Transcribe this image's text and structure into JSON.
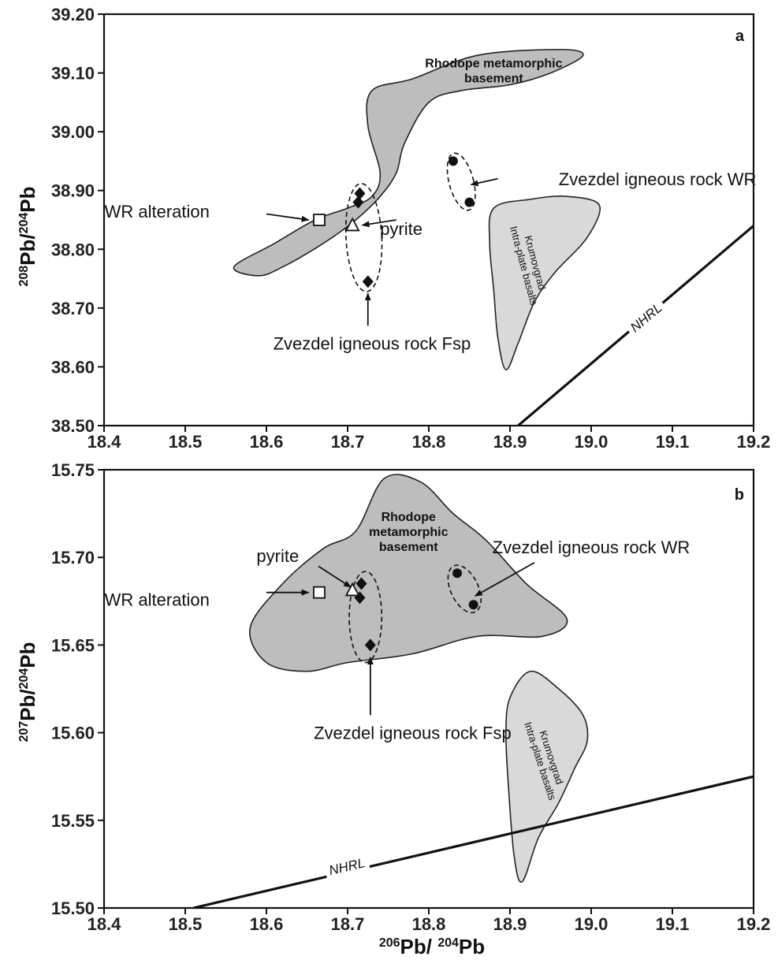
{
  "chart_data": [
    {
      "type": "scatter",
      "panel": "a",
      "xlim": [
        18.4,
        19.2
      ],
      "ylim": [
        38.5,
        39.2
      ],
      "x_ticks": [
        "18.4",
        "18.5",
        "18.6",
        "18.7",
        "18.8",
        "18.9",
        "19.0",
        "19.1",
        "19.2"
      ],
      "y_ticks": [
        "38.50",
        "38.60",
        "38.70",
        "38.80",
        "38.90",
        "39.00",
        "39.10",
        "39.20"
      ],
      "ylabel": {
        "sup1": "208",
        "base1": "Pb/",
        "sup2": "204",
        "base2": "Pb"
      },
      "regions": [
        {
          "name": "Rhodope metamorphic basement",
          "label_lines": [
            "Rhodope metamorphic",
            "basement"
          ],
          "fill": "#bdbdbd",
          "outline": [
            [
              18.56,
              38.77
            ],
            [
              18.61,
              38.81
            ],
            [
              18.66,
              38.85
            ],
            [
              18.7,
              38.87
            ],
            [
              18.73,
              38.89
            ],
            [
              18.74,
              38.93
            ],
            [
              18.725,
              39.01
            ],
            [
              18.73,
              39.07
            ],
            [
              18.78,
              39.09
            ],
            [
              18.86,
              39.13
            ],
            [
              18.96,
              39.14
            ],
            [
              18.99,
              39.13
            ],
            [
              18.95,
              39.1
            ],
            [
              18.9,
              39.08
            ],
            [
              18.84,
              39.07
            ],
            [
              18.8,
              39.05
            ],
            [
              18.77,
              38.98
            ],
            [
              18.76,
              38.93
            ],
            [
              18.74,
              38.89
            ],
            [
              18.71,
              38.85
            ],
            [
              18.67,
              38.81
            ],
            [
              18.62,
              38.77
            ],
            [
              18.59,
              38.755
            ],
            [
              18.56,
              38.77
            ]
          ]
        },
        {
          "name": "Krumovgrad Intra-plate basalts",
          "label_lines": [
            "Krumovgrad",
            "Intra-plate basalts"
          ],
          "fill": "#d9d9d9",
          "outline": [
            [
              18.88,
              38.87
            ],
            [
              18.925,
              38.885
            ],
            [
              18.97,
              38.89
            ],
            [
              19.01,
              38.875
            ],
            [
              18.995,
              38.82
            ],
            [
              18.955,
              38.76
            ],
            [
              18.93,
              38.71
            ],
            [
              18.91,
              38.64
            ],
            [
              18.895,
              38.595
            ],
            [
              18.885,
              38.65
            ],
            [
              18.88,
              38.73
            ],
            [
              18.875,
              38.81
            ],
            [
              18.88,
              38.87
            ]
          ]
        }
      ],
      "series": [
        {
          "name": "Zvezdel igneous rock WR",
          "marker": "circle",
          "x": [
            18.83,
            18.85
          ],
          "y": [
            38.95,
            38.88
          ]
        },
        {
          "name": "Zvezdel igneous rock Fsp",
          "marker": "diamond",
          "x": [
            18.715,
            18.713,
            18.725
          ],
          "y": [
            38.895,
            38.88,
            38.745
          ]
        },
        {
          "name": "WR alteration",
          "marker": "square",
          "x": [
            18.665
          ],
          "y": [
            38.85
          ]
        },
        {
          "name": "pyrite",
          "marker": "triangle",
          "x": [
            18.706
          ],
          "y": [
            38.84
          ]
        }
      ],
      "ellipses": [
        {
          "group": "Zvezdel igneous rock WR",
          "cx": 18.84,
          "cy": 38.915,
          "rx": 0.015,
          "ry": 0.05,
          "rot_deg": -15
        },
        {
          "group": "Zvezdel igneous rock Fsp",
          "cx": 18.72,
          "cy": 38.82,
          "rx": 0.022,
          "ry": 0.092,
          "rot_deg": -3
        }
      ],
      "lines": [
        {
          "name": "NHRL",
          "x": [
            18.91,
            19.2
          ],
          "y": [
            38.5,
            38.84
          ]
        }
      ],
      "annotations": [
        {
          "text": "WR alteration",
          "tx": 18.53,
          "ty": 38.865,
          "tail": [
            18.6,
            38.86
          ],
          "head": [
            18.652,
            38.85
          ]
        },
        {
          "text": "pyrite",
          "tx": 18.74,
          "ty": 38.835,
          "tail": [
            18.76,
            38.85
          ],
          "head": [
            18.718,
            38.841
          ]
        },
        {
          "text": "Zvezdel igneous rock Fsp",
          "tx": 18.73,
          "ty": 38.64,
          "tail": [
            18.725,
            38.67
          ],
          "head": [
            18.725,
            38.725
          ]
        },
        {
          "text": "Zvezdel igneous rock WR",
          "tx": 18.96,
          "ty": 38.92,
          "tail": [
            18.885,
            38.92
          ],
          "head": [
            18.852,
            38.91
          ]
        }
      ],
      "nhrl_label": {
        "text": "NHRL",
        "x": 19.07,
        "y": 38.68
      }
    },
    {
      "type": "scatter",
      "panel": "b",
      "xlim": [
        18.4,
        19.2
      ],
      "ylim": [
        15.5,
        15.75
      ],
      "x_ticks": [
        "18.4",
        "18.5",
        "18.6",
        "18.7",
        "18.8",
        "18.9",
        "19.0",
        "19.1",
        "19.2"
      ],
      "y_ticks": [
        "15.50",
        "15.55",
        "15.60",
        "15.65",
        "15.70",
        "15.75"
      ],
      "xlabel": {
        "sup1": "206",
        "base1": "Pb/ ",
        "sup2": "204",
        "base2": "Pb"
      },
      "ylabel": {
        "sup1": "207",
        "base1": "Pb/",
        "sup2": "204",
        "base2": "Pb"
      },
      "regions": [
        {
          "name": "Rhodope metamorphic basement",
          "label_lines": [
            "Rhodope",
            "metamorphic",
            "basement"
          ],
          "fill": "#bdbdbd",
          "outline": [
            [
              18.58,
              15.66
            ],
            [
              18.62,
              15.685
            ],
            [
              18.67,
              15.705
            ],
            [
              18.71,
              15.715
            ],
            [
              18.745,
              15.745
            ],
            [
              18.79,
              15.743
            ],
            [
              18.83,
              15.725
            ],
            [
              18.87,
              15.71
            ],
            [
              18.92,
              15.685
            ],
            [
              18.97,
              15.665
            ],
            [
              18.94,
              15.655
            ],
            [
              18.86,
              15.655
            ],
            [
              18.78,
              15.645
            ],
            [
              18.7,
              15.64
            ],
            [
              18.65,
              15.635
            ],
            [
              18.6,
              15.64
            ],
            [
              18.58,
              15.66
            ]
          ]
        },
        {
          "name": "Krumovgrad Intra-plate basalts",
          "label_lines": [
            "Krumovgrad",
            "Intra-plate basalts"
          ],
          "fill": "#d9d9d9",
          "outline": [
            [
              18.9,
              15.62
            ],
            [
              18.925,
              15.635
            ],
            [
              18.96,
              15.625
            ],
            [
              18.99,
              15.61
            ],
            [
              18.995,
              15.595
            ],
            [
              18.98,
              15.58
            ],
            [
              18.96,
              15.56
            ],
            [
              18.935,
              15.54
            ],
            [
              18.915,
              15.515
            ],
            [
              18.905,
              15.53
            ],
            [
              18.898,
              15.57
            ],
            [
              18.895,
              15.6
            ],
            [
              18.9,
              15.62
            ]
          ]
        }
      ],
      "series": [
        {
          "name": "Zvezdel igneous rock WR",
          "marker": "circle",
          "x": [
            18.835,
            18.855
          ],
          "y": [
            15.691,
            15.673
          ]
        },
        {
          "name": "Zvezdel igneous rock Fsp",
          "marker": "diamond",
          "x": [
            18.717,
            18.715,
            18.728
          ],
          "y": [
            15.685,
            15.677,
            15.65
          ]
        },
        {
          "name": "WR alteration",
          "marker": "square",
          "x": [
            18.665
          ],
          "y": [
            15.68
          ]
        },
        {
          "name": "pyrite",
          "marker": "triangle",
          "x": [
            18.706
          ],
          "y": [
            15.681
          ]
        }
      ],
      "ellipses": [
        {
          "group": "Zvezdel igneous rock WR",
          "cx": 18.844,
          "cy": 15.682,
          "rx": 0.017,
          "ry": 0.0145,
          "rot_deg": -25
        },
        {
          "group": "Zvezdel igneous rock Fsp",
          "cx": 18.722,
          "cy": 15.666,
          "rx": 0.02,
          "ry": 0.026,
          "rot_deg": 0
        }
      ],
      "lines": [
        {
          "name": "NHRL",
          "x": [
            18.51,
            19.2
          ],
          "y": [
            15.5,
            15.575
          ]
        }
      ],
      "annotations": [
        {
          "text": "pyrite",
          "tx": 18.64,
          "ty": 15.701,
          "tail": [
            18.664,
            15.695
          ],
          "head": [
            18.704,
            15.683
          ]
        },
        {
          "text": "WR alteration",
          "tx": 18.53,
          "ty": 15.676,
          "tail": [
            18.6,
            15.68
          ],
          "head": [
            18.652,
            15.68
          ]
        },
        {
          "text": "Zvezdel igneous rock Fsp",
          "tx": 18.78,
          "ty": 15.6,
          "tail": [
            18.728,
            15.61
          ],
          "head": [
            18.728,
            15.643
          ]
        },
        {
          "text": "Zvezdel igneous rock WR",
          "tx": 19.0,
          "ty": 15.706,
          "tail": [
            18.93,
            15.697
          ],
          "head": [
            18.857,
            15.678
          ]
        }
      ],
      "nhrl_label": {
        "text": "NHRL",
        "x": 18.7,
        "y": 15.522
      }
    }
  ]
}
